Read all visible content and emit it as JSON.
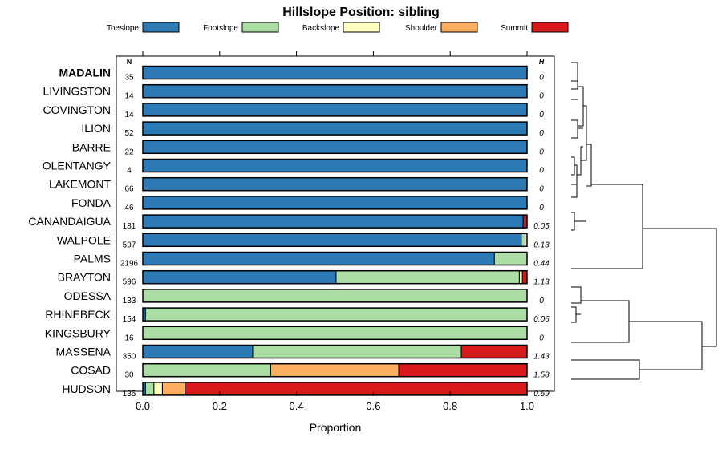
{
  "chart_data": {
    "type": "bar",
    "orientation": "horizontal",
    "stacked": true,
    "title": "Hillslope Position: sibling",
    "xlabel": "Proportion",
    "xlim": [
      0,
      1
    ],
    "xticks": [
      "0.0",
      "0.2",
      "0.4",
      "0.6",
      "0.8",
      "1.0"
    ],
    "n_header": "N",
    "h_header": "H",
    "series": [
      {
        "name": "Toeslope",
        "color": "#2c7bb6"
      },
      {
        "name": "Footslope",
        "color": "#abdda4"
      },
      {
        "name": "Backslope",
        "color": "#ffffbf"
      },
      {
        "name": "Shoulder",
        "color": "#fdae61"
      },
      {
        "name": "Summit",
        "color": "#d7191c"
      }
    ],
    "rows": [
      {
        "label": "MADALIN",
        "bold": true,
        "n": "35",
        "h": "0",
        "values": [
          1.0,
          0,
          0,
          0,
          0
        ]
      },
      {
        "label": "LIVINGSTON",
        "n": "14",
        "h": "0",
        "values": [
          1.0,
          0,
          0,
          0,
          0
        ]
      },
      {
        "label": "COVINGTON",
        "n": "14",
        "h": "0",
        "values": [
          1.0,
          0,
          0,
          0,
          0
        ]
      },
      {
        "label": "ILION",
        "n": "52",
        "h": "0",
        "values": [
          1.0,
          0,
          0,
          0,
          0
        ]
      },
      {
        "label": "BARRE",
        "n": "22",
        "h": "0",
        "values": [
          1.0,
          0,
          0,
          0,
          0
        ]
      },
      {
        "label": "OLENTANGY",
        "n": "4",
        "h": "0",
        "values": [
          1.0,
          0,
          0,
          0,
          0
        ]
      },
      {
        "label": "LAKEMONT",
        "n": "66",
        "h": "0",
        "values": [
          1.0,
          0,
          0,
          0,
          0
        ]
      },
      {
        "label": "FONDA",
        "n": "46",
        "h": "0",
        "values": [
          1.0,
          0,
          0,
          0,
          0
        ]
      },
      {
        "label": "CANANDAIGUA",
        "n": "181",
        "h": "0.05",
        "values": [
          0.99,
          0,
          0,
          0,
          0.01
        ]
      },
      {
        "label": "WALPOLE",
        "n": "597",
        "h": "0.13",
        "values": [
          0.985,
          0.01,
          0.005,
          0,
          0
        ]
      },
      {
        "label": "PALMS",
        "n": "2196",
        "h": "0.44",
        "values": [
          0.915,
          0.085,
          0,
          0,
          0
        ]
      },
      {
        "label": "BRAYTON",
        "n": "596",
        "h": "1.13",
        "values": [
          0.503,
          0.477,
          0.008,
          0,
          0.012
        ]
      },
      {
        "label": "ODESSA",
        "n": "133",
        "h": "0",
        "values": [
          0,
          1.0,
          0,
          0,
          0
        ]
      },
      {
        "label": "RHINEBECK",
        "n": "154",
        "h": "0.06",
        "values": [
          0.007,
          0.993,
          0,
          0,
          0
        ]
      },
      {
        "label": "KINGSBURY",
        "n": "16",
        "h": "0",
        "values": [
          0,
          1.0,
          0,
          0,
          0
        ]
      },
      {
        "label": "MASSENA",
        "n": "350",
        "h": "1.43",
        "values": [
          0.286,
          0.543,
          0,
          0,
          0.171
        ]
      },
      {
        "label": "COSAD",
        "n": "30",
        "h": "1.58",
        "values": [
          0,
          0.333,
          0,
          0.333,
          0.334
        ]
      },
      {
        "label": "HUDSON",
        "n": "135",
        "h": "0.69",
        "values": [
          0.007,
          0.022,
          0.022,
          0.059,
          0.89
        ]
      }
    ]
  }
}
